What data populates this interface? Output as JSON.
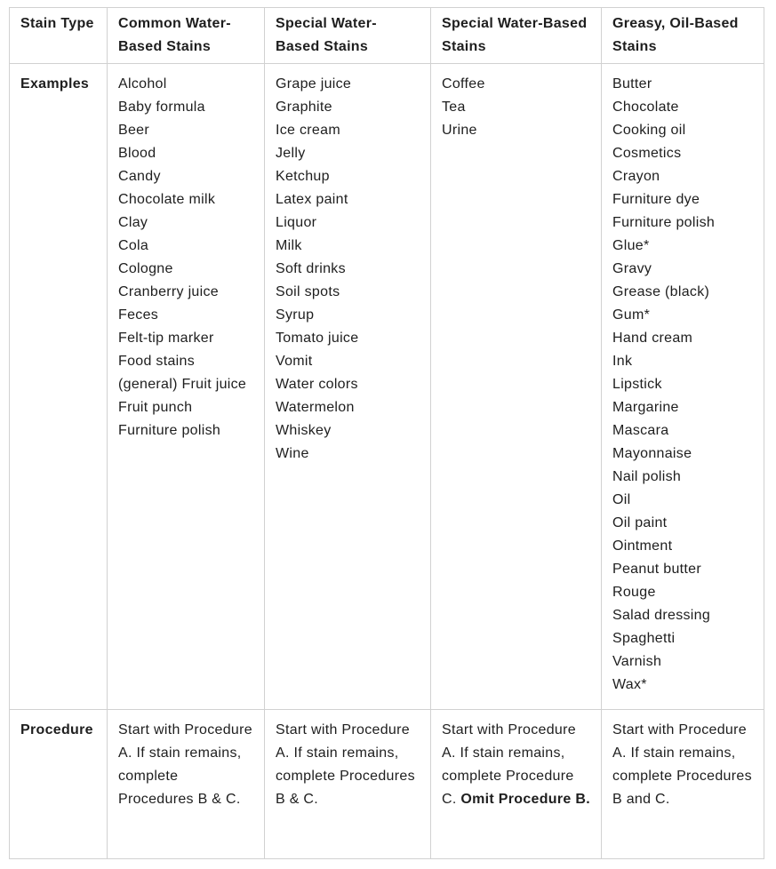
{
  "table": {
    "border_color": "#d1d1d1",
    "text_color": "#1e1e1e",
    "headers": [
      "Stain Type",
      "Common Water-Based Stains",
      "Special Water-Based Stains",
      "Special Water-Based Stains",
      "Greasy, Oil-Based Stains"
    ],
    "rows": {
      "examples": {
        "label": "Examples",
        "common_water_based": [
          "Alcohol",
          "Baby formula",
          "Beer",
          "Blood",
          "Candy",
          "Chocolate milk",
          "Clay",
          "Cola",
          "Cologne",
          "Cranberry juice",
          "Feces",
          "Felt-tip marker",
          "Food stains (general) Fruit juice",
          "Fruit punch",
          "Furniture polish"
        ],
        "special_water_based_1": [
          "Grape juice",
          "Graphite",
          "Ice cream",
          "Jelly",
          "Ketchup",
          "Latex paint",
          "Liquor",
          "Milk",
          "Soft drinks",
          "Soil spots",
          "Syrup",
          "Tomato juice",
          "Vomit",
          "Water colors",
          "Watermelon",
          "Whiskey",
          "Wine"
        ],
        "special_water_based_2": [
          "Coffee",
          "Tea",
          "Urine"
        ],
        "greasy_oil_based": [
          "Butter",
          "Chocolate",
          "Cooking oil",
          "Cosmetics",
          "Crayon",
          "Furniture dye",
          "Furniture polish",
          "Glue*",
          "Gravy",
          "Grease (black)",
          "Gum*",
          "Hand cream",
          "Ink",
          "Lipstick",
          "Margarine",
          "Mascara",
          "Mayonnaise",
          "Nail polish",
          "Oil",
          "Oil paint",
          "Ointment",
          "Peanut butter",
          "Rouge",
          "Salad dressing",
          "Spaghetti",
          "Varnish",
          "Wax*"
        ]
      },
      "procedure": {
        "label": "Procedure",
        "common_water_based": [
          {
            "text": "Start with Procedure A. If stain remains, complete Procedures B & C.",
            "bold": false
          }
        ],
        "special_water_based_1": [
          {
            "text": "Start with Procedure A. If stain remains, complete Procedures B & C.",
            "bold": false
          }
        ],
        "special_water_based_2": [
          {
            "text": "Start with Procedure A. If stain remains, complete Procedure C. ",
            "bold": false
          },
          {
            "text": "Omit Procedure B.",
            "bold": true
          }
        ],
        "greasy_oil_based": [
          {
            "text": "Start with Procedure A. If stain remains, complete Procedures B and C.",
            "bold": false
          }
        ]
      }
    }
  }
}
